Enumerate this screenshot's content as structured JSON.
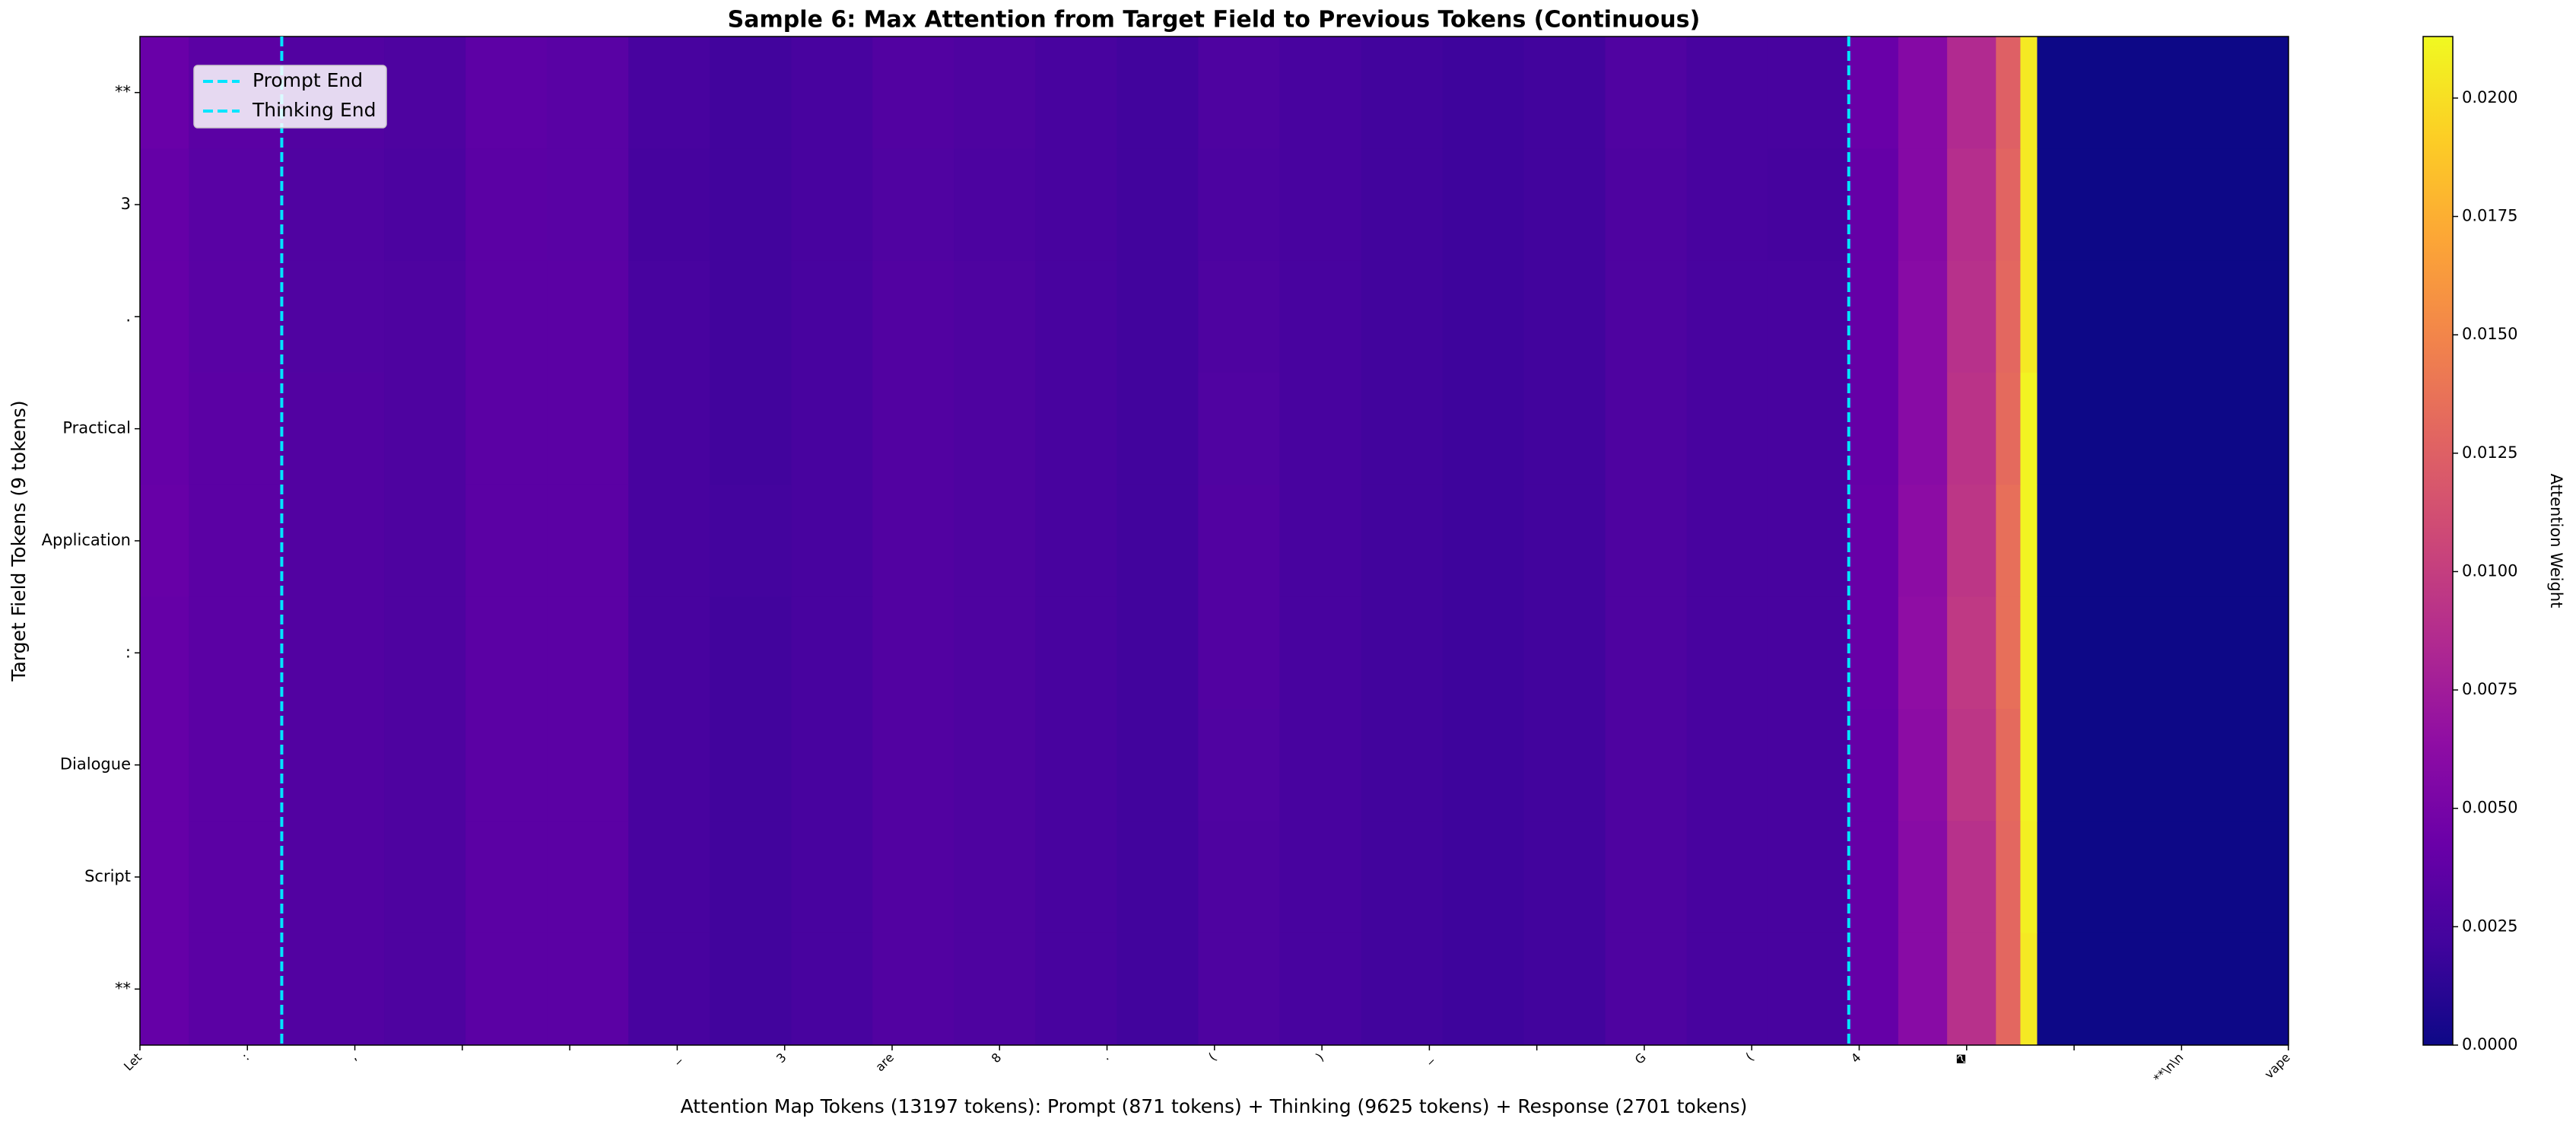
{
  "chart_data": {
    "type": "heatmap",
    "title": "Sample 6: Max Attention from Target Field to Previous Tokens (Continuous)",
    "xlabel": "Attention Map Tokens (13197 tokens): Prompt (871 tokens) + Thinking (9625 tokens) + Response (2701 tokens)",
    "ylabel": "Target Field Tokens (9 tokens)",
    "colorbar_label": "Attention Weight",
    "colormap": "plasma",
    "rows": [
      "**",
      "3",
      ".",
      "Practical",
      "Application",
      ":",
      "Dialogue",
      "Script",
      "**"
    ],
    "x_edges": [
      0,
      300,
      871,
      1500,
      2000,
      2500,
      3000,
      3500,
      4000,
      4500,
      5000,
      5500,
      6000,
      6500,
      7000,
      7500,
      8000,
      8500,
      9000,
      9500,
      10000,
      10496,
      10800,
      11100,
      11400,
      11550,
      11653,
      13197
    ],
    "z": [
      [
        0.0042,
        0.0035,
        0.003,
        0.0028,
        0.0036,
        0.0034,
        0.0025,
        0.0022,
        0.0025,
        0.003,
        0.0028,
        0.0025,
        0.0022,
        0.0028,
        0.0025,
        0.0022,
        0.002,
        0.0022,
        0.0029,
        0.0025,
        0.0025,
        0.0042,
        0.0058,
        0.0085,
        0.0125,
        0.0205,
        0
      ],
      [
        0.004,
        0.0034,
        0.0029,
        0.0027,
        0.0035,
        0.0034,
        0.0024,
        0.0022,
        0.0025,
        0.0029,
        0.0027,
        0.0025,
        0.0022,
        0.0027,
        0.0025,
        0.0022,
        0.002,
        0.0022,
        0.0028,
        0.0025,
        0.0024,
        0.004,
        0.0058,
        0.0088,
        0.0128,
        0.0205,
        0
      ],
      [
        0.004,
        0.0034,
        0.0029,
        0.0028,
        0.0035,
        0.0035,
        0.0025,
        0.0022,
        0.0025,
        0.003,
        0.0028,
        0.0025,
        0.0022,
        0.0028,
        0.0025,
        0.0022,
        0.002,
        0.0022,
        0.0028,
        0.0025,
        0.0025,
        0.004,
        0.006,
        0.009,
        0.013,
        0.0205,
        0
      ],
      [
        0.004,
        0.0035,
        0.003,
        0.0028,
        0.0035,
        0.0035,
        0.0025,
        0.0022,
        0.0025,
        0.003,
        0.0028,
        0.0025,
        0.0022,
        0.0029,
        0.0025,
        0.0022,
        0.002,
        0.0022,
        0.0028,
        0.0025,
        0.0025,
        0.004,
        0.006,
        0.0092,
        0.0132,
        0.021,
        0
      ],
      [
        0.0041,
        0.0035,
        0.003,
        0.0028,
        0.0035,
        0.0035,
        0.0025,
        0.0023,
        0.0025,
        0.003,
        0.0028,
        0.0025,
        0.0022,
        0.003,
        0.0025,
        0.0022,
        0.002,
        0.0022,
        0.0028,
        0.0025,
        0.0025,
        0.0041,
        0.0062,
        0.0094,
        0.0135,
        0.021,
        0
      ],
      [
        0.004,
        0.0035,
        0.003,
        0.0028,
        0.0035,
        0.0035,
        0.0025,
        0.0022,
        0.0025,
        0.003,
        0.0028,
        0.0025,
        0.0022,
        0.003,
        0.0025,
        0.0022,
        0.002,
        0.0022,
        0.0028,
        0.0025,
        0.0025,
        0.0041,
        0.0064,
        0.0096,
        0.0135,
        0.021,
        0
      ],
      [
        0.004,
        0.0035,
        0.003,
        0.0028,
        0.0035,
        0.0035,
        0.0025,
        0.0022,
        0.0025,
        0.003,
        0.0028,
        0.0025,
        0.0022,
        0.0029,
        0.0025,
        0.0022,
        0.002,
        0.0022,
        0.0028,
        0.0025,
        0.0025,
        0.004,
        0.0062,
        0.0094,
        0.0132,
        0.021,
        0
      ],
      [
        0.004,
        0.0035,
        0.003,
        0.0028,
        0.0035,
        0.0035,
        0.0025,
        0.0022,
        0.0025,
        0.003,
        0.0028,
        0.0025,
        0.0022,
        0.0028,
        0.0025,
        0.0022,
        0.002,
        0.0022,
        0.0028,
        0.0025,
        0.0025,
        0.004,
        0.006,
        0.009,
        0.013,
        0.0208,
        0
      ],
      [
        0.004,
        0.0035,
        0.003,
        0.0028,
        0.0035,
        0.0035,
        0.0025,
        0.0022,
        0.0025,
        0.003,
        0.0028,
        0.0025,
        0.0022,
        0.0028,
        0.0025,
        0.0022,
        0.002,
        0.0022,
        0.0028,
        0.0025,
        0.0025,
        0.004,
        0.006,
        0.009,
        0.013,
        0.0205,
        0
      ]
    ],
    "xlim": [
      0,
      13197
    ],
    "xticks": [
      {
        "value": 0,
        "label": "Let"
      },
      {
        "value": 660,
        "label": ":"
      },
      {
        "value": 1320,
        "label": ","
      },
      {
        "value": 1980,
        "label": null
      },
      {
        "value": 2640,
        "label": null
      },
      {
        "value": 3300,
        "label": "_"
      },
      {
        "value": 3960,
        "label": "3"
      },
      {
        "value": 4620,
        "label": "are"
      },
      {
        "value": 5280,
        "label": "8"
      },
      {
        "value": 5940,
        "label": "."
      },
      {
        "value": 6600,
        "label": "("
      },
      {
        "value": 7260,
        "label": ")"
      },
      {
        "value": 7920,
        "label": "_"
      },
      {
        "value": 8580,
        "label": null
      },
      {
        "value": 9240,
        "label": "G"
      },
      {
        "value": 9900,
        "label": "("
      },
      {
        "value": 10560,
        "label": "4"
      },
      {
        "value": 11220,
        "label": "�"
      },
      {
        "value": 11880,
        "label": null
      },
      {
        "value": 12540,
        "label": "**\\n\\n"
      },
      {
        "value": 13196,
        "label": "vape"
      }
    ],
    "zlim": [
      0,
      0.0213
    ],
    "zticks": [
      {
        "value": 0,
        "label": "0.0000"
      },
      {
        "value": 0.0025,
        "label": "0.0025"
      },
      {
        "value": 0.005,
        "label": "0.0050"
      },
      {
        "value": 0.0075,
        "label": "0.0075"
      },
      {
        "value": 0.01,
        "label": "0.0100"
      },
      {
        "value": 0.0125,
        "label": "0.0125"
      },
      {
        "value": 0.015,
        "label": "0.0150"
      },
      {
        "value": 0.0175,
        "label": "0.0175"
      },
      {
        "value": 0.02,
        "label": "0.0200"
      }
    ],
    "vlines": [
      {
        "name": "Prompt End",
        "x": 871,
        "color": "#00e5ff"
      },
      {
        "name": "Thinking End",
        "x": 10496,
        "color": "#00e5ff"
      }
    ],
    "legend": "upper left"
  }
}
